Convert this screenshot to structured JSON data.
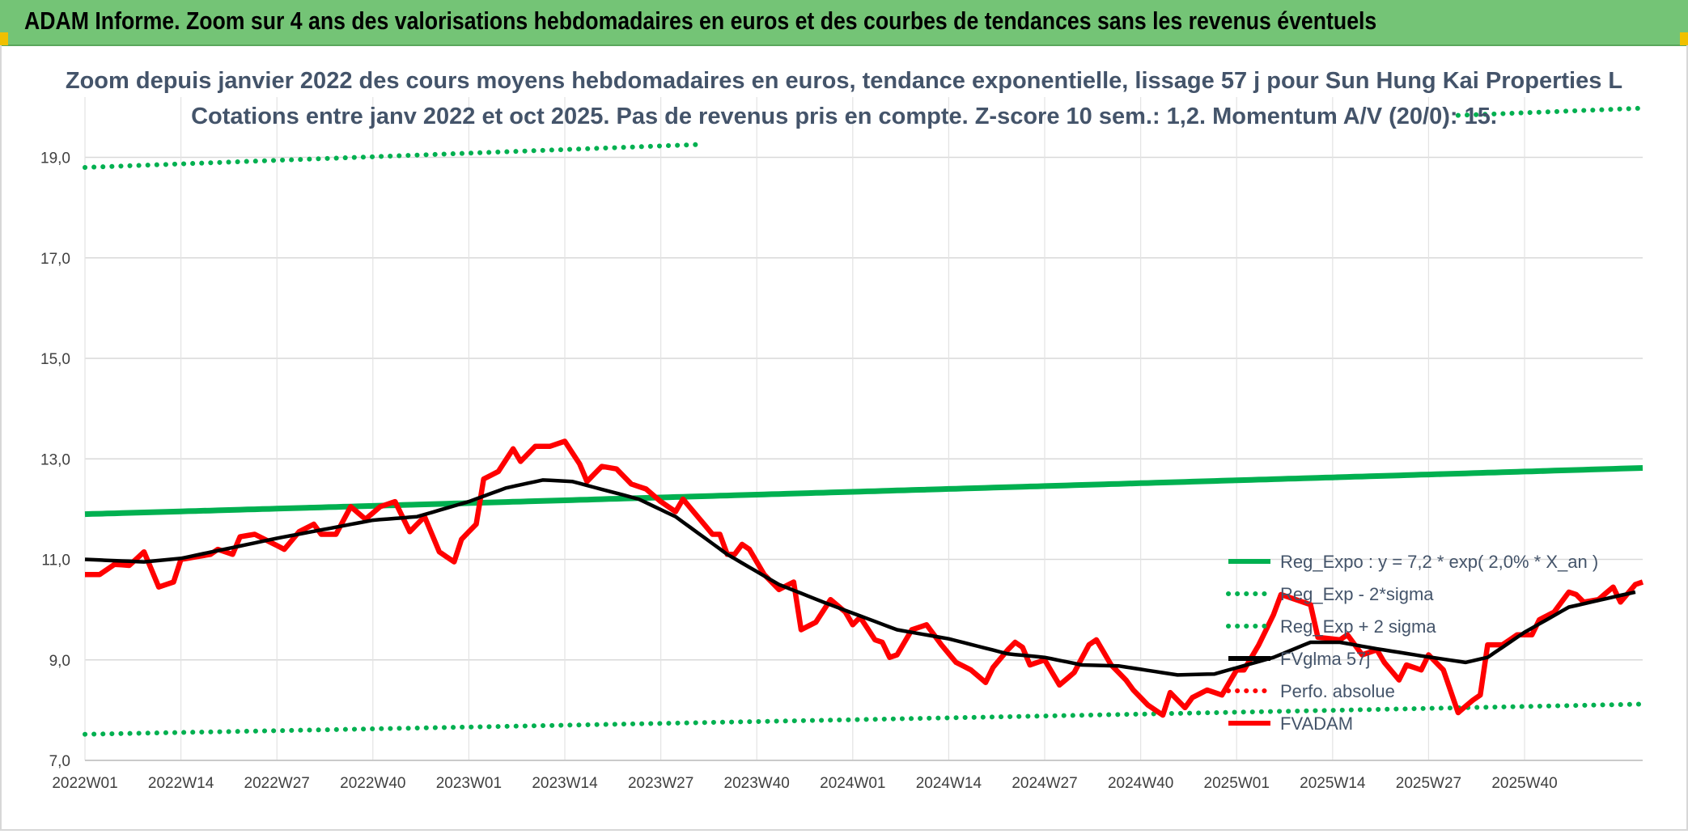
{
  "header": {
    "title": "ADAM Informe. Zoom sur 4 ans des valorisations hebdomadaires en euros et des courbes de tendances sans les revenus éventuels"
  },
  "chart_data": {
    "type": "line",
    "title": "Zoom depuis janvier 2022 des cours moyens hebdomadaires en euros, tendance exponentielle, lissage 57 j pour Sun Hung Kai Properties L",
    "subtitle": "Cotations entre janv 2022 et oct 2025. Pas de revenus pris en compte. Z-score 10 sem.: 1,2. Momentum A/V (20/0): 15.",
    "xlabel": "",
    "ylabel": "",
    "ylim": [
      7.0,
      20.2
    ],
    "yticks": [
      "7,0",
      "9,0",
      "11,0",
      "13,0",
      "15,0",
      "17,0",
      "19,0"
    ],
    "ytick_values": [
      7,
      9,
      11,
      13,
      15,
      17,
      19
    ],
    "xticks": [
      "2022W01",
      "2022W14",
      "2022W27",
      "2022W40",
      "2023W01",
      "2023W14",
      "2023W27",
      "2023W40",
      "2024W01",
      "2024W14",
      "2024W27",
      "2024W40",
      "2025W01",
      "2025W14",
      "2025W27",
      "2025W40"
    ],
    "x_weeks": 201,
    "grid": true,
    "legend_position": "right",
    "series": [
      {
        "name": "Reg_Expo : y = 7,2 * exp( 2,0% *  X_an )",
        "color": "#00b050",
        "style": "solid",
        "start": 11.9,
        "end": 12.82
      },
      {
        "name": "Reg_Exp - 2*sigma",
        "color": "#00b050",
        "style": "dotted",
        "start": 7.52,
        "end": 8.12
      },
      {
        "name": "Reg_Exp + 2 sigma",
        "color": "#00b050",
        "style": "dotted",
        "start": 18.8,
        "end": 19.98
      },
      {
        "name": "FVglma 57j",
        "color": "#000000",
        "style": "solid",
        "anchors": [
          [
            0,
            11.0
          ],
          [
            8,
            10.95
          ],
          [
            13,
            11.02
          ],
          [
            26,
            11.42
          ],
          [
            39,
            11.78
          ],
          [
            45,
            11.85
          ],
          [
            52,
            12.15
          ],
          [
            57,
            12.42
          ],
          [
            62,
            12.58
          ],
          [
            66,
            12.55
          ],
          [
            75,
            12.2
          ],
          [
            80,
            11.85
          ],
          [
            87,
            11.1
          ],
          [
            94,
            10.5
          ],
          [
            100,
            10.15
          ],
          [
            110,
            9.6
          ],
          [
            117,
            9.42
          ],
          [
            125,
            9.12
          ],
          [
            130,
            9.05
          ],
          [
            135,
            8.9
          ],
          [
            140,
            8.88
          ],
          [
            148,
            8.7
          ],
          [
            153,
            8.72
          ],
          [
            161,
            9.05
          ],
          [
            166,
            9.35
          ],
          [
            170,
            9.35
          ],
          [
            175,
            9.22
          ],
          [
            181,
            9.08
          ],
          [
            187,
            8.95
          ],
          [
            190,
            9.05
          ],
          [
            195,
            9.55
          ],
          [
            201,
            10.05
          ],
          [
            210,
            10.35
          ]
        ]
      },
      {
        "name": "Perfo. absolue",
        "color": "#ff0000",
        "style": "dotted",
        "values": []
      },
      {
        "name": "FVADAM",
        "color": "#ff0000",
        "style": "solid",
        "anchors": [
          [
            0,
            10.7
          ],
          [
            2,
            10.7
          ],
          [
            4,
            10.9
          ],
          [
            6,
            10.88
          ],
          [
            8,
            11.15
          ],
          [
            10,
            10.45
          ],
          [
            12,
            10.55
          ],
          [
            13,
            11.0
          ],
          [
            15,
            11.05
          ],
          [
            17,
            11.1
          ],
          [
            18,
            11.2
          ],
          [
            20,
            11.1
          ],
          [
            21,
            11.45
          ],
          [
            23,
            11.5
          ],
          [
            25,
            11.35
          ],
          [
            27,
            11.2
          ],
          [
            29,
            11.55
          ],
          [
            31,
            11.7
          ],
          [
            32,
            11.5
          ],
          [
            34,
            11.5
          ],
          [
            36,
            12.05
          ],
          [
            38,
            11.8
          ],
          [
            40,
            12.05
          ],
          [
            42,
            12.15
          ],
          [
            44,
            11.55
          ],
          [
            46,
            11.85
          ],
          [
            48,
            11.15
          ],
          [
            50,
            10.95
          ],
          [
            51,
            11.4
          ],
          [
            53,
            11.7
          ],
          [
            54,
            12.6
          ],
          [
            56,
            12.75
          ],
          [
            58,
            13.2
          ],
          [
            59,
            12.95
          ],
          [
            61,
            13.25
          ],
          [
            63,
            13.25
          ],
          [
            65,
            13.35
          ],
          [
            67,
            12.9
          ],
          [
            68,
            12.55
          ],
          [
            70,
            12.85
          ],
          [
            72,
            12.8
          ],
          [
            74,
            12.5
          ],
          [
            76,
            12.4
          ],
          [
            78,
            12.15
          ],
          [
            80,
            11.95
          ],
          [
            81,
            12.2
          ],
          [
            83,
            11.85
          ],
          [
            85,
            11.5
          ],
          [
            86,
            11.5
          ],
          [
            87,
            11.1
          ],
          [
            88,
            11.1
          ],
          [
            89,
            11.3
          ],
          [
            90,
            11.2
          ],
          [
            92,
            10.7
          ],
          [
            94,
            10.4
          ],
          [
            96,
            10.55
          ],
          [
            97,
            9.6
          ],
          [
            99,
            9.75
          ],
          [
            101,
            10.2
          ],
          [
            103,
            9.95
          ],
          [
            104,
            9.7
          ],
          [
            105,
            9.85
          ],
          [
            107,
            9.4
          ],
          [
            108,
            9.35
          ],
          [
            109,
            9.05
          ],
          [
            110,
            9.1
          ],
          [
            112,
            9.6
          ],
          [
            114,
            9.7
          ],
          [
            116,
            9.3
          ],
          [
            118,
            8.95
          ],
          [
            120,
            8.8
          ],
          [
            122,
            8.55
          ],
          [
            123,
            8.85
          ],
          [
            125,
            9.2
          ],
          [
            126,
            9.35
          ],
          [
            127,
            9.25
          ],
          [
            128,
            8.9
          ],
          [
            130,
            9.0
          ],
          [
            132,
            8.5
          ],
          [
            134,
            8.75
          ],
          [
            136,
            9.3
          ],
          [
            137,
            9.4
          ],
          [
            139,
            8.9
          ],
          [
            141,
            8.6
          ],
          [
            142,
            8.4
          ],
          [
            144,
            8.1
          ],
          [
            146,
            7.9
          ],
          [
            147,
            8.35
          ],
          [
            149,
            8.05
          ],
          [
            150,
            8.25
          ],
          [
            152,
            8.4
          ],
          [
            154,
            8.3
          ],
          [
            156,
            8.8
          ],
          [
            157,
            8.8
          ],
          [
            159,
            9.3
          ],
          [
            161,
            9.9
          ],
          [
            162,
            10.3
          ],
          [
            164,
            10.2
          ],
          [
            166,
            10.1
          ],
          [
            167,
            9.45
          ],
          [
            170,
            9.4
          ],
          [
            171,
            9.5
          ],
          [
            173,
            9.1
          ],
          [
            175,
            9.2
          ],
          [
            176,
            8.95
          ],
          [
            178,
            8.6
          ],
          [
            179,
            8.9
          ],
          [
            181,
            8.8
          ],
          [
            182,
            9.1
          ],
          [
            184,
            8.8
          ],
          [
            186,
            7.95
          ],
          [
            188,
            8.2
          ],
          [
            189,
            8.3
          ],
          [
            190,
            9.3
          ],
          [
            192,
            9.3
          ],
          [
            194,
            9.5
          ],
          [
            196,
            9.5
          ],
          [
            197,
            9.8
          ],
          [
            199,
            9.95
          ],
          [
            201,
            10.35
          ],
          [
            202,
            10.3
          ],
          [
            203,
            10.15
          ],
          [
            205,
            10.2
          ],
          [
            207,
            10.45
          ],
          [
            208,
            10.15
          ],
          [
            210,
            10.5
          ],
          [
            211,
            10.55
          ]
        ]
      }
    ]
  }
}
